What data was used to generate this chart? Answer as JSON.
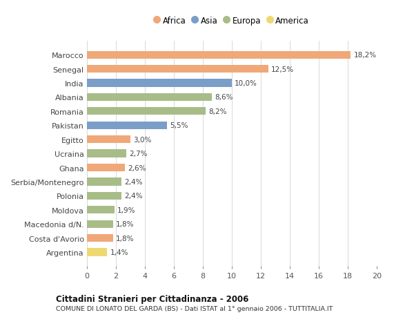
{
  "countries": [
    "Marocco",
    "Senegal",
    "India",
    "Albania",
    "Romania",
    "Pakistan",
    "Egitto",
    "Ucraina",
    "Ghana",
    "Serbia/Montenegro",
    "Polonia",
    "Moldova",
    "Macedonia d/N.",
    "Costa d'Avorio",
    "Argentina"
  ],
  "values": [
    18.2,
    12.5,
    10.0,
    8.6,
    8.2,
    5.5,
    3.0,
    2.7,
    2.6,
    2.4,
    2.4,
    1.9,
    1.8,
    1.8,
    1.4
  ],
  "labels": [
    "18,2%",
    "12,5%",
    "10,0%",
    "8,6%",
    "8,2%",
    "5,5%",
    "3,0%",
    "2,7%",
    "2,6%",
    "2,4%",
    "2,4%",
    "1,9%",
    "1,8%",
    "1,8%",
    "1,4%"
  ],
  "regions": [
    "Africa",
    "Africa",
    "Asia",
    "Europa",
    "Europa",
    "Asia",
    "Africa",
    "Europa",
    "Africa",
    "Europa",
    "Europa",
    "Europa",
    "Europa",
    "Africa",
    "America"
  ],
  "colors": {
    "Africa": "#F0A878",
    "Asia": "#7B9EC8",
    "Europa": "#A8BC88",
    "America": "#F0D870"
  },
  "legend_order": [
    "Africa",
    "Asia",
    "Europa",
    "America"
  ],
  "xlim": [
    0,
    20
  ],
  "xticks": [
    0,
    2,
    4,
    6,
    8,
    10,
    12,
    14,
    16,
    18,
    20
  ],
  "title1": "Cittadini Stranieri per Cittadinanza - 2006",
  "title2": "COMUNE DI LONATO DEL GARDA (BS) - Dati ISTAT al 1° gennaio 2006 - TUTTITALIA.IT",
  "background_color": "#ffffff",
  "grid_color": "#d8d8d8"
}
